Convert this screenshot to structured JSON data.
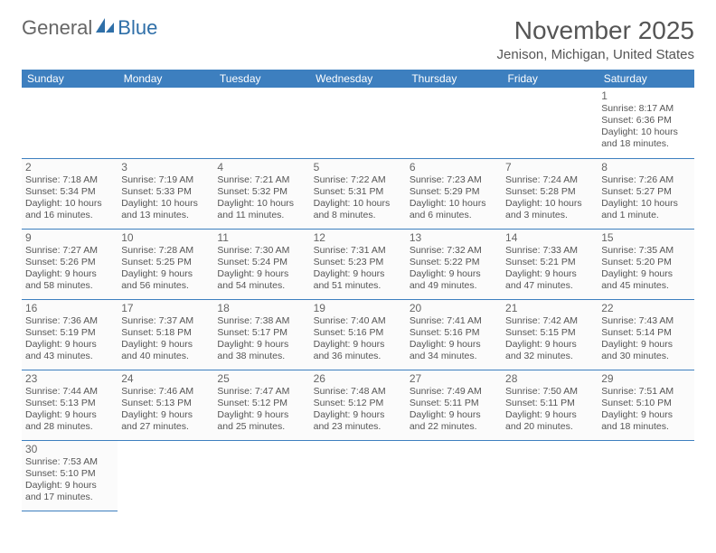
{
  "logo": {
    "general": "General",
    "blue": "Blue"
  },
  "title": "November 2025",
  "location": "Jenison, Michigan, United States",
  "header_color": "#3d7fbf",
  "day_headers": [
    "Sunday",
    "Monday",
    "Tuesday",
    "Wednesday",
    "Thursday",
    "Friday",
    "Saturday"
  ],
  "weeks": [
    [
      null,
      null,
      null,
      null,
      null,
      null,
      {
        "n": "1",
        "sr": "Sunrise: 8:17 AM",
        "ss": "Sunset: 6:36 PM",
        "d1": "Daylight: 10 hours",
        "d2": "and 18 minutes."
      }
    ],
    [
      {
        "n": "2",
        "sr": "Sunrise: 7:18 AM",
        "ss": "Sunset: 5:34 PM",
        "d1": "Daylight: 10 hours",
        "d2": "and 16 minutes."
      },
      {
        "n": "3",
        "sr": "Sunrise: 7:19 AM",
        "ss": "Sunset: 5:33 PM",
        "d1": "Daylight: 10 hours",
        "d2": "and 13 minutes."
      },
      {
        "n": "4",
        "sr": "Sunrise: 7:21 AM",
        "ss": "Sunset: 5:32 PM",
        "d1": "Daylight: 10 hours",
        "d2": "and 11 minutes."
      },
      {
        "n": "5",
        "sr": "Sunrise: 7:22 AM",
        "ss": "Sunset: 5:31 PM",
        "d1": "Daylight: 10 hours",
        "d2": "and 8 minutes."
      },
      {
        "n": "6",
        "sr": "Sunrise: 7:23 AM",
        "ss": "Sunset: 5:29 PM",
        "d1": "Daylight: 10 hours",
        "d2": "and 6 minutes."
      },
      {
        "n": "7",
        "sr": "Sunrise: 7:24 AM",
        "ss": "Sunset: 5:28 PM",
        "d1": "Daylight: 10 hours",
        "d2": "and 3 minutes."
      },
      {
        "n": "8",
        "sr": "Sunrise: 7:26 AM",
        "ss": "Sunset: 5:27 PM",
        "d1": "Daylight: 10 hours",
        "d2": "and 1 minute."
      }
    ],
    [
      {
        "n": "9",
        "sr": "Sunrise: 7:27 AM",
        "ss": "Sunset: 5:26 PM",
        "d1": "Daylight: 9 hours",
        "d2": "and 58 minutes."
      },
      {
        "n": "10",
        "sr": "Sunrise: 7:28 AM",
        "ss": "Sunset: 5:25 PM",
        "d1": "Daylight: 9 hours",
        "d2": "and 56 minutes."
      },
      {
        "n": "11",
        "sr": "Sunrise: 7:30 AM",
        "ss": "Sunset: 5:24 PM",
        "d1": "Daylight: 9 hours",
        "d2": "and 54 minutes."
      },
      {
        "n": "12",
        "sr": "Sunrise: 7:31 AM",
        "ss": "Sunset: 5:23 PM",
        "d1": "Daylight: 9 hours",
        "d2": "and 51 minutes."
      },
      {
        "n": "13",
        "sr": "Sunrise: 7:32 AM",
        "ss": "Sunset: 5:22 PM",
        "d1": "Daylight: 9 hours",
        "d2": "and 49 minutes."
      },
      {
        "n": "14",
        "sr": "Sunrise: 7:33 AM",
        "ss": "Sunset: 5:21 PM",
        "d1": "Daylight: 9 hours",
        "d2": "and 47 minutes."
      },
      {
        "n": "15",
        "sr": "Sunrise: 7:35 AM",
        "ss": "Sunset: 5:20 PM",
        "d1": "Daylight: 9 hours",
        "d2": "and 45 minutes."
      }
    ],
    [
      {
        "n": "16",
        "sr": "Sunrise: 7:36 AM",
        "ss": "Sunset: 5:19 PM",
        "d1": "Daylight: 9 hours",
        "d2": "and 43 minutes."
      },
      {
        "n": "17",
        "sr": "Sunrise: 7:37 AM",
        "ss": "Sunset: 5:18 PM",
        "d1": "Daylight: 9 hours",
        "d2": "and 40 minutes."
      },
      {
        "n": "18",
        "sr": "Sunrise: 7:38 AM",
        "ss": "Sunset: 5:17 PM",
        "d1": "Daylight: 9 hours",
        "d2": "and 38 minutes."
      },
      {
        "n": "19",
        "sr": "Sunrise: 7:40 AM",
        "ss": "Sunset: 5:16 PM",
        "d1": "Daylight: 9 hours",
        "d2": "and 36 minutes."
      },
      {
        "n": "20",
        "sr": "Sunrise: 7:41 AM",
        "ss": "Sunset: 5:16 PM",
        "d1": "Daylight: 9 hours",
        "d2": "and 34 minutes."
      },
      {
        "n": "21",
        "sr": "Sunrise: 7:42 AM",
        "ss": "Sunset: 5:15 PM",
        "d1": "Daylight: 9 hours",
        "d2": "and 32 minutes."
      },
      {
        "n": "22",
        "sr": "Sunrise: 7:43 AM",
        "ss": "Sunset: 5:14 PM",
        "d1": "Daylight: 9 hours",
        "d2": "and 30 minutes."
      }
    ],
    [
      {
        "n": "23",
        "sr": "Sunrise: 7:44 AM",
        "ss": "Sunset: 5:13 PM",
        "d1": "Daylight: 9 hours",
        "d2": "and 28 minutes."
      },
      {
        "n": "24",
        "sr": "Sunrise: 7:46 AM",
        "ss": "Sunset: 5:13 PM",
        "d1": "Daylight: 9 hours",
        "d2": "and 27 minutes."
      },
      {
        "n": "25",
        "sr": "Sunrise: 7:47 AM",
        "ss": "Sunset: 5:12 PM",
        "d1": "Daylight: 9 hours",
        "d2": "and 25 minutes."
      },
      {
        "n": "26",
        "sr": "Sunrise: 7:48 AM",
        "ss": "Sunset: 5:12 PM",
        "d1": "Daylight: 9 hours",
        "d2": "and 23 minutes."
      },
      {
        "n": "27",
        "sr": "Sunrise: 7:49 AM",
        "ss": "Sunset: 5:11 PM",
        "d1": "Daylight: 9 hours",
        "d2": "and 22 minutes."
      },
      {
        "n": "28",
        "sr": "Sunrise: 7:50 AM",
        "ss": "Sunset: 5:11 PM",
        "d1": "Daylight: 9 hours",
        "d2": "and 20 minutes."
      },
      {
        "n": "29",
        "sr": "Sunrise: 7:51 AM",
        "ss": "Sunset: 5:10 PM",
        "d1": "Daylight: 9 hours",
        "d2": "and 18 minutes."
      }
    ],
    [
      {
        "n": "30",
        "sr": "Sunrise: 7:53 AM",
        "ss": "Sunset: 5:10 PM",
        "d1": "Daylight: 9 hours",
        "d2": "and 17 minutes."
      },
      null,
      null,
      null,
      null,
      null,
      null
    ]
  ]
}
